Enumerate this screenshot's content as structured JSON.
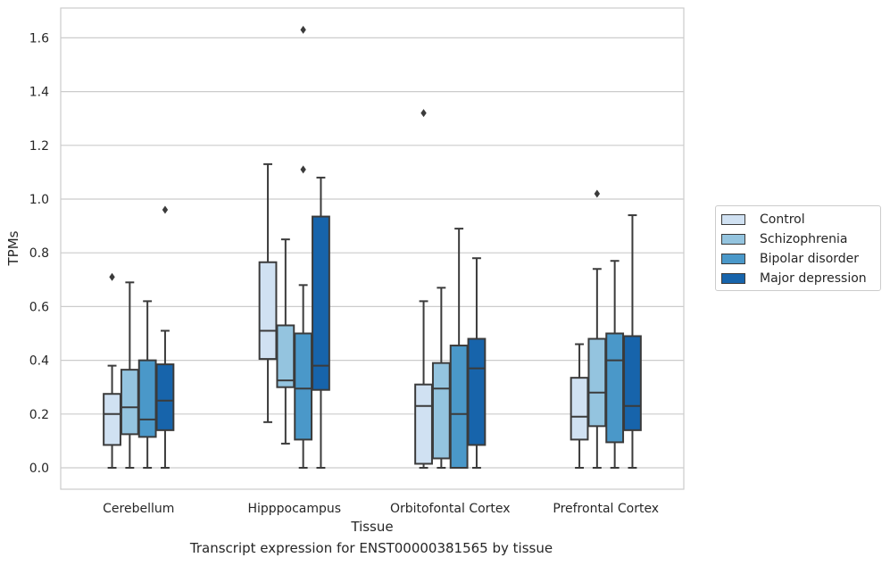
{
  "chart_data": {
    "type": "box",
    "title": "",
    "caption": "Transcript expression for ENST00000381565 by tissue",
    "xlabel": "Tissue",
    "ylabel": "TPMs",
    "ylim": [
      -0.08,
      1.72
    ],
    "yticks": [
      "0.0",
      "0.2",
      "0.4",
      "0.6",
      "0.8",
      "1.0",
      "1.2",
      "1.4",
      "1.6"
    ],
    "categories": [
      "Cerebellum",
      "Hipppocampus",
      "Orbitofontal Cortex",
      "Prefrontal Cortex"
    ],
    "grid": "horizontal",
    "legend_position": "right",
    "series": [
      {
        "name": "Control",
        "color": "#d0e1f2",
        "boxes": [
          {
            "whislo": 0.0,
            "q1": 0.085,
            "med": 0.2,
            "q3": 0.275,
            "whishi": 0.38,
            "fliers": [
              0.71
            ]
          },
          {
            "whislo": 0.17,
            "q1": 0.405,
            "med": 0.51,
            "q3": 0.765,
            "whishi": 1.13,
            "fliers": []
          },
          {
            "whislo": 0.0,
            "q1": 0.015,
            "med": 0.23,
            "q3": 0.31,
            "whishi": 0.62,
            "fliers": [
              1.32
            ]
          },
          {
            "whislo": 0.0,
            "q1": 0.105,
            "med": 0.19,
            "q3": 0.335,
            "whishi": 0.46,
            "fliers": []
          }
        ]
      },
      {
        "name": "Schizophrenia",
        "color": "#94c4df",
        "boxes": [
          {
            "whislo": 0.0,
            "q1": 0.125,
            "med": 0.225,
            "q3": 0.365,
            "whishi": 0.69,
            "fliers": []
          },
          {
            "whislo": 0.09,
            "q1": 0.3,
            "med": 0.325,
            "q3": 0.53,
            "whishi": 0.85,
            "fliers": []
          },
          {
            "whislo": 0.0,
            "q1": 0.035,
            "med": 0.295,
            "q3": 0.39,
            "whishi": 0.67,
            "fliers": []
          },
          {
            "whislo": 0.0,
            "q1": 0.155,
            "med": 0.28,
            "q3": 0.48,
            "whishi": 0.74,
            "fliers": [
              1.02
            ]
          }
        ]
      },
      {
        "name": "Bipolar disorder",
        "color": "#4a98c9",
        "boxes": [
          {
            "whislo": 0.0,
            "q1": 0.115,
            "med": 0.18,
            "q3": 0.4,
            "whishi": 0.62,
            "fliers": []
          },
          {
            "whislo": 0.0,
            "q1": 0.105,
            "med": 0.295,
            "q3": 0.5,
            "whishi": 0.68,
            "fliers": [
              1.11,
              1.63
            ]
          },
          {
            "whislo": 0.0,
            "q1": 0.0,
            "med": 0.2,
            "q3": 0.455,
            "whishi": 0.89,
            "fliers": []
          },
          {
            "whislo": 0.0,
            "q1": 0.095,
            "med": 0.4,
            "q3": 0.5,
            "whishi": 0.77,
            "fliers": []
          }
        ]
      },
      {
        "name": "Major depression",
        "color": "#1764ab",
        "boxes": [
          {
            "whislo": 0.0,
            "q1": 0.14,
            "med": 0.25,
            "q3": 0.385,
            "whishi": 0.51,
            "fliers": [
              0.96
            ]
          },
          {
            "whislo": 0.0,
            "q1": 0.29,
            "med": 0.38,
            "q3": 0.935,
            "whishi": 1.08,
            "fliers": []
          },
          {
            "whislo": 0.0,
            "q1": 0.085,
            "med": 0.37,
            "q3": 0.48,
            "whishi": 0.78,
            "fliers": []
          },
          {
            "whislo": 0.0,
            "q1": 0.14,
            "med": 0.23,
            "q3": 0.49,
            "whishi": 0.94,
            "fliers": []
          }
        ]
      }
    ]
  }
}
